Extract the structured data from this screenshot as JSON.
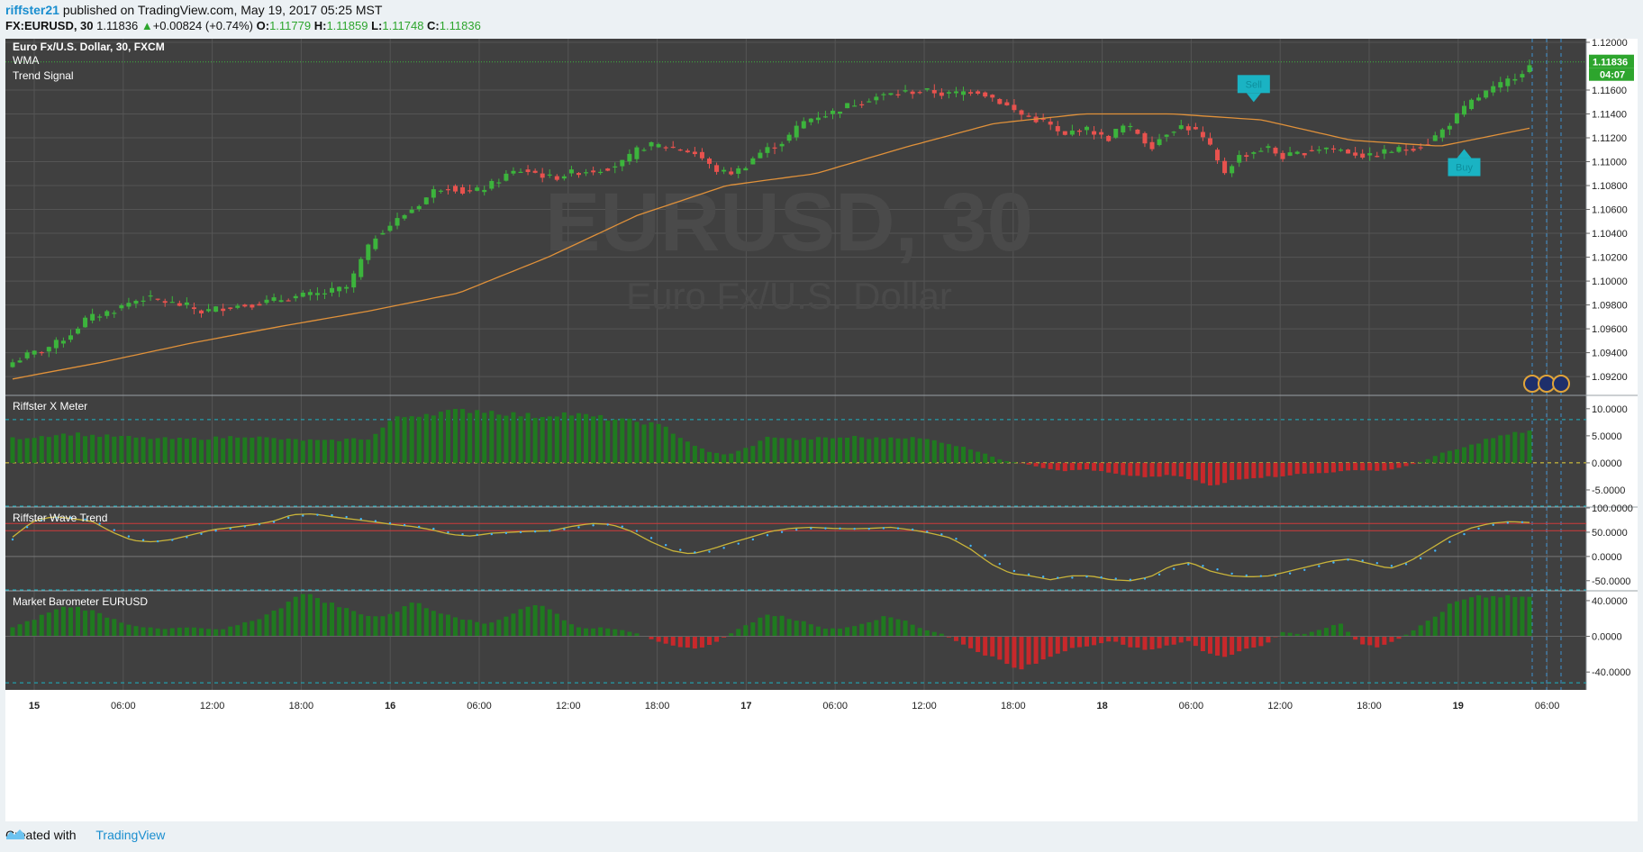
{
  "header": {
    "author": "riffster21",
    "published_text": "published on TradingView.com, May 19, 2017 05:25 MST",
    "symbol": "FX:EURUSD, 30",
    "last": "1.11836",
    "change": "+0.00824 (+0.74%)",
    "o_label": "O:",
    "o_value": "1.11779",
    "h_label": "H:",
    "h_value": "1.11859",
    "l_label": "L:",
    "l_value": "1.11748",
    "c_label": "C:",
    "c_value": "1.11836"
  },
  "main_pane": {
    "title": "Euro Fx/U.S. Dollar, 30, FXCM",
    "legend_wma": "WMA",
    "legend_trend": "Trend Signal",
    "watermark_big": "EURUSD, 30",
    "watermark_small": "Euro Fx/U.S. Dollar",
    "price_tag": "1.11836",
    "time_tag": "04:07",
    "sell_label": "Sell",
    "buy_label": "Buy"
  },
  "footer": {
    "created_with": "Created with",
    "brand": "TradingView"
  },
  "colors": {
    "bg": "#404040",
    "grid": "#555555",
    "up": "#3cb43c",
    "down": "#e8524e",
    "wma": "#e0913a",
    "teal": "#1ab3c3",
    "hist_up": "#1f7a1f",
    "hist_down": "#c8282b",
    "wave_line": "#c9b43a",
    "wave_dots": "#3fb6ff"
  },
  "chart_data": [
    {
      "type": "candlestick",
      "title": "Euro Fx/U.S. Dollar, 30, FXCM",
      "x_ticks": [
        "15",
        "06:00",
        "12:00",
        "18:00",
        "16",
        "06:00",
        "12:00",
        "18:00",
        "17",
        "06:00",
        "12:00",
        "18:00",
        "18",
        "06:00",
        "12:00",
        "18:00",
        "19",
        "06:00"
      ],
      "y_ticks": [
        "1.12000",
        "1.11600",
        "1.11400",
        "1.11200",
        "1.11000",
        "1.10800",
        "1.10600",
        "1.10400",
        "1.10200",
        "1.10000",
        "1.09800",
        "1.09600",
        "1.09400",
        "1.09200"
      ],
      "ylim": [
        1.0905,
        1.1203
      ],
      "close_path": [
        1.0932,
        1.0938,
        1.0942,
        1.0948,
        1.0956,
        1.0968,
        1.0972,
        1.0976,
        1.0982,
        1.0986,
        1.0984,
        1.0981,
        1.0979,
        1.0974,
        1.0977,
        1.0979,
        1.098,
        1.0982,
        1.0984,
        1.0986,
        1.0988,
        1.0989,
        1.0992,
        1.0995,
        1.102,
        1.104,
        1.1048,
        1.1057,
        1.1066,
        1.1077,
        1.108,
        1.1074,
        1.1076,
        1.1082,
        1.109,
        1.1093,
        1.109,
        1.1086,
        1.109,
        1.1092,
        1.1093,
        1.1096,
        1.11,
        1.1112,
        1.1114,
        1.1112,
        1.111,
        1.1106,
        1.1094,
        1.109,
        1.1094,
        1.1106,
        1.1112,
        1.1118,
        1.1132,
        1.1138,
        1.114,
        1.1146,
        1.115,
        1.1154,
        1.1156,
        1.1158,
        1.1159,
        1.1159,
        1.1156,
        1.1158,
        1.116,
        1.1155,
        1.1148,
        1.114,
        1.1136,
        1.1132,
        1.112,
        1.1128,
        1.1126,
        1.1118,
        1.113,
        1.1126,
        1.1112,
        1.1124,
        1.113,
        1.1127,
        1.1114,
        1.109,
        1.1104,
        1.1108,
        1.1112,
        1.1104,
        1.1106,
        1.111,
        1.1112,
        1.111,
        1.1107,
        1.1104,
        1.1108,
        1.111,
        1.1112,
        1.1116,
        1.1126,
        1.1138,
        1.115,
        1.1158,
        1.1164,
        1.1172,
        1.118
      ],
      "candle_count": 210,
      "series": [
        {
          "name": "WMA",
          "values": [
            1.0918,
            1.0932,
            1.0948,
            1.0962,
            1.0975,
            1.099,
            1.102,
            1.1055,
            1.108,
            1.109,
            1.1112,
            1.1132,
            1.114,
            1.114,
            1.1135,
            1.1118,
            1.1113,
            1.1128
          ]
        },
        {
          "name": "Trend Signal",
          "signals": [
            {
              "label": "Sell",
              "x_index": 171,
              "price": 1.1159
            },
            {
              "label": "Buy",
              "x_index": 200,
              "price": 1.1103
            }
          ]
        }
      ]
    },
    {
      "type": "bar",
      "title": "Riffster X Meter",
      "y_ticks": [
        "10.0000",
        "5.0000",
        "0.0000",
        "-5.0000"
      ],
      "ylim": [
        -8.0,
        12.3
      ],
      "levels": [
        8.0,
        0.0,
        -8.0
      ],
      "values_path": [
        4.5,
        4.8,
        5.2,
        5.4,
        5.0,
        4.9,
        4.6,
        4.5,
        4.4,
        4.5,
        4.7,
        5.0,
        4.6,
        4.3,
        4.2,
        4.0,
        4.4,
        4.5,
        8.0,
        8.8,
        9.3,
        9.5,
        9.8,
        9.4,
        8.9,
        8.6,
        9.2,
        8.8,
        8.3,
        7.8,
        7.5,
        6.5,
        4.0,
        2.0,
        1.5,
        3.0,
        5.0,
        4.3,
        4.5,
        4.6,
        4.8,
        4.5,
        4.8,
        4.5,
        4.0,
        3.0,
        2.0,
        0.4,
        -0.1,
        -1.0,
        -1.5,
        -1.2,
        -1.8,
        -2.5,
        -2.6,
        -2.3,
        -3.1,
        -4.5,
        -3.0,
        -2.7,
        -2.5,
        -2.1,
        -1.9,
        -1.6,
        -1.3,
        -1.5,
        -0.8,
        0.4,
        2.0,
        2.9,
        4.4,
        5.2,
        6.0
      ]
    },
    {
      "type": "line",
      "title": "Riffster Wave Trend",
      "y_ticks": [
        "100.0000",
        "50.0000",
        "0.0000",
        "-50.0000"
      ],
      "ylim": [
        -69,
        100
      ],
      "levels": [
        68,
        53,
        0
      ],
      "series": [
        {
          "name": "wave",
          "values": [
            40,
            72,
            82,
            78,
            72,
            50,
            33,
            30,
            35,
            45,
            55,
            60,
            65,
            72,
            86,
            88,
            82,
            77,
            72,
            66,
            62,
            55,
            45,
            42,
            48,
            50,
            52,
            53,
            62,
            68,
            66,
            52,
            30,
            12,
            5,
            15,
            28,
            40,
            52,
            58,
            60,
            58,
            57,
            58,
            60,
            55,
            48,
            38,
            15,
            -15,
            -35,
            -40,
            -48,
            -40,
            -40,
            -48,
            -50,
            -42,
            -20,
            -12,
            -30,
            -40,
            -42,
            -40,
            -30,
            -20,
            -10,
            -5,
            -15,
            -25,
            -10,
            15,
            40,
            58,
            68,
            72,
            70
          ]
        },
        {
          "name": "signal",
          "values": [
            35,
            70,
            80,
            80,
            74,
            56,
            38,
            30,
            34,
            42,
            52,
            58,
            64,
            70,
            82,
            86,
            85,
            80,
            74,
            68,
            63,
            58,
            48,
            44,
            46,
            49,
            51,
            53,
            58,
            64,
            66,
            58,
            38,
            18,
            8,
            10,
            22,
            34,
            46,
            54,
            58,
            58,
            57,
            57,
            59,
            56,
            50,
            42,
            22,
            -5,
            -28,
            -38,
            -44,
            -44,
            -41,
            -45,
            -48,
            -45,
            -28,
            -15,
            -22,
            -35,
            -40,
            -41,
            -35,
            -25,
            -14,
            -6,
            -10,
            -20,
            -15,
            5,
            30,
            52,
            64,
            70,
            71
          ]
        }
      ]
    },
    {
      "type": "bar",
      "title": "Market Barometer EURUSD",
      "y_ticks": [
        "40.0000",
        "0.0000",
        "-40.0000"
      ],
      "ylim": [
        -60,
        50
      ],
      "levels": [
        52,
        -52
      ],
      "values_path": [
        10,
        18,
        28,
        34,
        30,
        22,
        14,
        10,
        8,
        10,
        9,
        7,
        14,
        20,
        30,
        48,
        44,
        35,
        28,
        22,
        24,
        40,
        30,
        25,
        18,
        14,
        22,
        32,
        36,
        20,
        8,
        10,
        8,
        3,
        -6,
        -12,
        -14,
        -8,
        5,
        16,
        25,
        20,
        15,
        8,
        10,
        15,
        22,
        18,
        8,
        3,
        -8,
        -18,
        -26,
        -38,
        -30,
        -20,
        -12,
        -10,
        -5,
        -12,
        -16,
        -10,
        -5,
        -20,
        -22,
        -14,
        -10,
        5,
        2,
        8,
        15,
        -8,
        -12,
        -4,
        8,
        22,
        38,
        45,
        46,
        45,
        44
      ]
    }
  ]
}
